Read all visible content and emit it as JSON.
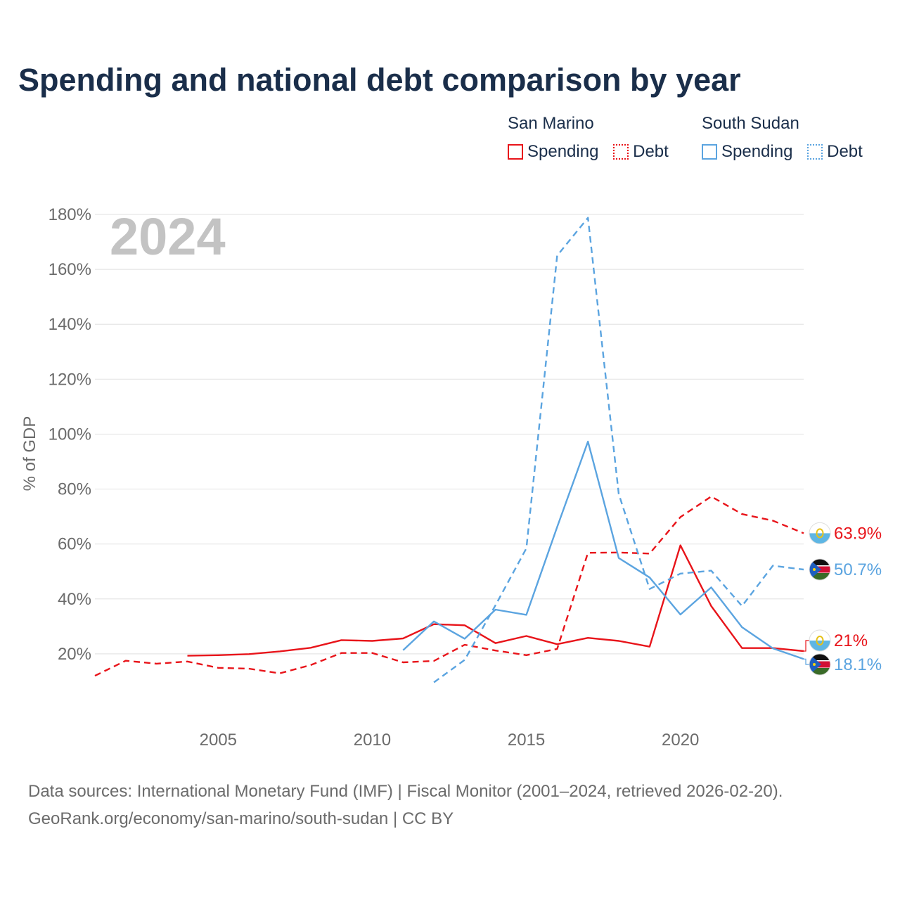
{
  "title": "Spending and national debt comparison by year",
  "legend": {
    "groups": [
      {
        "name": "San Marino",
        "items": [
          "Spending",
          "Debt"
        ]
      },
      {
        "name": "South Sudan",
        "items": [
          "Spending",
          "Debt"
        ]
      }
    ]
  },
  "year_watermark": "2024",
  "footer": {
    "line1": "Data sources: International Monetary Fund (IMF) | Fiscal Monitor (2001–2024, retrieved 2026-02-20).",
    "line2": "GeoRank.org/economy/san-marino/south-sudan | CC BY"
  },
  "colors": {
    "san_marino": "#e8141a",
    "south_sudan": "#5ba4e0",
    "title": "#1a2e4a",
    "grid": "#e6e6e6"
  },
  "chart_data": {
    "type": "line",
    "title": "Spending and national debt comparison by year",
    "xlabel": "",
    "ylabel": "% of GDP",
    "xlim": [
      2001,
      2024
    ],
    "ylim": [
      0,
      180
    ],
    "xticks": [
      2005,
      2010,
      2015,
      2020
    ],
    "xtick_labels": [
      "2005",
      "2010",
      "2015",
      "2020"
    ],
    "yticks": [
      20,
      40,
      60,
      80,
      100,
      120,
      140,
      160,
      180
    ],
    "ytick_labels": [
      "20%",
      "40%",
      "60%",
      "80%",
      "100%",
      "120%",
      "140%",
      "160%",
      "180%"
    ],
    "series": [
      {
        "name": "San Marino Debt",
        "country": "San Marino",
        "metric": "Debt",
        "style": "dashed",
        "color": "#e8141a",
        "x": [
          2001,
          2002,
          2003,
          2004,
          2005,
          2006,
          2007,
          2008,
          2009,
          2010,
          2011,
          2012,
          2013,
          2014,
          2015,
          2016,
          2017,
          2018,
          2019,
          2020,
          2021,
          2022,
          2023,
          2024
        ],
        "values": [
          12.0,
          17.5,
          16.4,
          17.2,
          14.9,
          14.6,
          12.9,
          15.9,
          20.3,
          20.3,
          16.9,
          17.4,
          23.3,
          21.2,
          19.5,
          21.8,
          56.8,
          56.9,
          56.5,
          69.8,
          77.3,
          70.9,
          68.5,
          63.9
        ],
        "end_label": "63.9%"
      },
      {
        "name": "San Marino Spending",
        "country": "San Marino",
        "metric": "Spending",
        "style": "solid",
        "color": "#e8141a",
        "x": [
          2004,
          2005,
          2006,
          2007,
          2008,
          2009,
          2010,
          2011,
          2012,
          2013,
          2014,
          2015,
          2016,
          2017,
          2018,
          2019,
          2020,
          2021,
          2022,
          2023,
          2024
        ],
        "values": [
          19.3,
          19.5,
          19.9,
          20.9,
          22.2,
          25.0,
          24.7,
          25.6,
          30.8,
          30.4,
          23.9,
          26.5,
          23.5,
          25.8,
          24.7,
          22.6,
          59.5,
          37.4,
          22.1,
          22.1,
          21.0
        ],
        "end_label": "21%"
      },
      {
        "name": "South Sudan Debt",
        "country": "South Sudan",
        "metric": "Debt",
        "style": "dashed",
        "color": "#5ba4e0",
        "x": [
          2012,
          2013,
          2014,
          2015,
          2016,
          2017,
          2018,
          2019,
          2020,
          2021,
          2022,
          2023,
          2024
        ],
        "values": [
          9.6,
          17.8,
          37.7,
          58.4,
          165.0,
          178.8,
          78.2,
          43.6,
          49.2,
          50.3,
          37.4,
          52.1,
          50.7
        ],
        "end_label": "50.7%"
      },
      {
        "name": "South Sudan Spending",
        "country": "South Sudan",
        "metric": "Spending",
        "style": "solid",
        "color": "#5ba4e0",
        "x": [
          2011,
          2012,
          2013,
          2014,
          2015,
          2016,
          2017,
          2018,
          2019,
          2020,
          2021,
          2022,
          2023,
          2024
        ],
        "values": [
          21.3,
          31.8,
          25.5,
          36.1,
          34.2,
          66.2,
          97.3,
          54.9,
          47.8,
          34.3,
          44.2,
          29.7,
          22.0,
          18.1
        ],
        "end_label": "18.1%"
      }
    ]
  }
}
